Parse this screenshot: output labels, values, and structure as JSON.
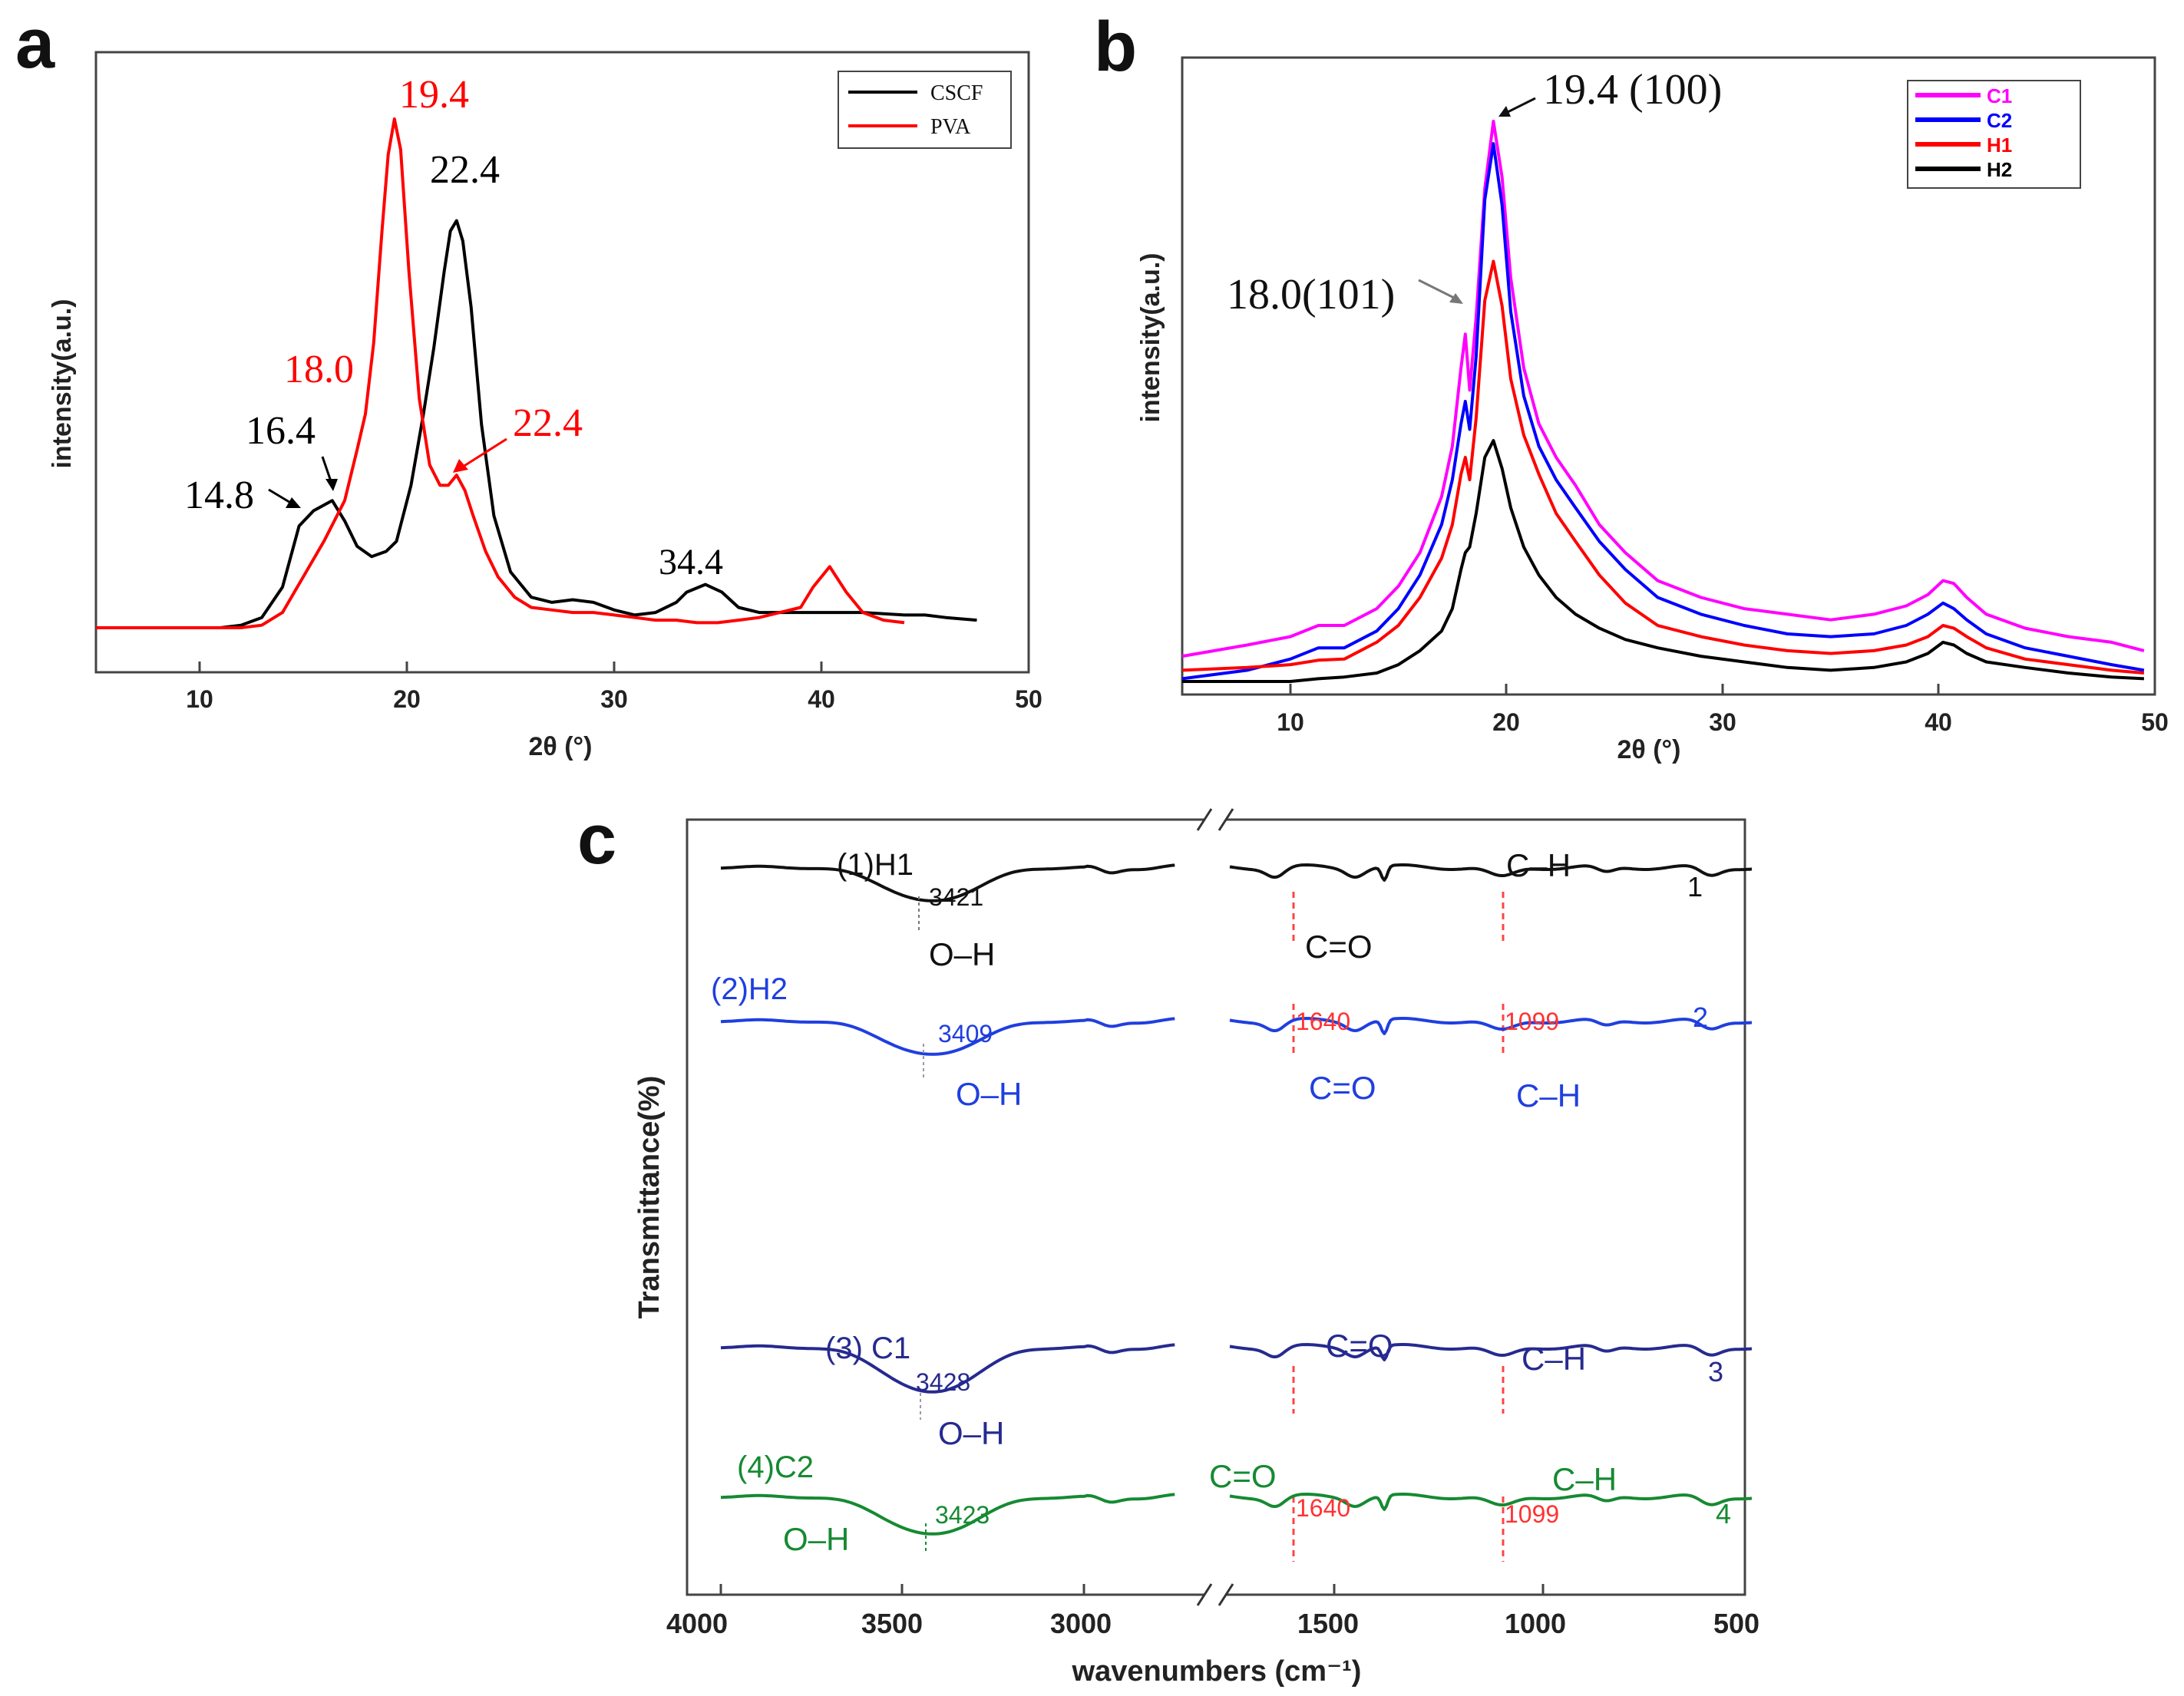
{
  "figure": {
    "panel_labels": [
      "a",
      "b",
      "c"
    ]
  },
  "chart_data": [
    {
      "id": "a",
      "type": "line",
      "xlabel": "2θ (°)",
      "ylabel": "intensity(a.u.)",
      "xlim": [
        5,
        50
      ],
      "ylim": [
        0,
        100
      ],
      "xticks": [
        "10",
        "20",
        "30",
        "40",
        "50"
      ],
      "legend": {
        "position": "top-right",
        "entries": [
          "CSCF",
          "PVA"
        ]
      },
      "series": [
        {
          "name": "CSCF",
          "color": "#000000",
          "x": [
            5,
            11,
            12,
            13,
            14,
            14.8,
            15.5,
            16.4,
            17,
            17.6,
            18.3,
            19,
            19.5,
            20.2,
            20.8,
            21.3,
            21.8,
            22.1,
            22.4,
            22.7,
            23.1,
            23.6,
            24.2,
            25,
            26,
            27,
            28,
            29,
            30,
            31,
            32,
            33,
            33.5,
            34.4,
            35.2,
            36,
            37,
            38,
            40,
            42,
            44,
            45,
            46,
            47.5
          ],
          "y": [
            0,
            0,
            0.5,
            2,
            8,
            20,
            23,
            25,
            21,
            16,
            14,
            15,
            17,
            28,
            42,
            55,
            70,
            78,
            80,
            76,
            63,
            40,
            22,
            11,
            6,
            5,
            5.5,
            5,
            3.5,
            2.5,
            3,
            5,
            7,
            8.5,
            7,
            4,
            3,
            3,
            3,
            3,
            2.5,
            2.5,
            2,
            1.5
          ]
        },
        {
          "name": "PVA",
          "color": "#ff0000",
          "x": [
            5,
            12,
            13,
            14,
            15,
            16,
            17,
            17.6,
            18,
            18.4,
            18.8,
            19.1,
            19.4,
            19.7,
            20.1,
            20.6,
            21.1,
            21.6,
            22.0,
            22.4,
            22.8,
            23.2,
            23.8,
            24.4,
            25.2,
            26,
            27,
            28,
            29,
            30,
            31,
            32,
            33,
            34,
            35,
            36,
            37,
            38,
            39,
            39.6,
            40.4,
            41.2,
            42,
            43,
            44
          ],
          "y": [
            0,
            0,
            0.5,
            3,
            10,
            17,
            25,
            35,
            42,
            56,
            78,
            93,
            100,
            94,
            70,
            45,
            32,
            28,
            28,
            30,
            27,
            22,
            15,
            10,
            6,
            4,
            3.5,
            3,
            3,
            2.5,
            2,
            1.5,
            1.5,
            1,
            1,
            1.5,
            2,
            3,
            4,
            8,
            12,
            7,
            3,
            1.5,
            1
          ]
        }
      ],
      "annotations": [
        {
          "text": "19.4",
          "color": "#ff0000"
        },
        {
          "text": "22.4",
          "color": "#000000"
        },
        {
          "text": "18.0",
          "color": "#ff0000"
        },
        {
          "text": "16.4",
          "color": "#000000"
        },
        {
          "text": "14.8",
          "color": "#000000"
        },
        {
          "text": "22.4",
          "color": "#ff0000"
        },
        {
          "text": "34.4",
          "color": "#000000"
        }
      ]
    },
    {
      "id": "b",
      "type": "line",
      "xlabel": "2θ (°)",
      "ylabel": "intensity(a.u.)",
      "xlim": [
        5,
        50
      ],
      "ylim": [
        0,
        100
      ],
      "xticks": [
        "10",
        "20",
        "30",
        "40",
        "50"
      ],
      "legend": {
        "position": "top-right",
        "entries": [
          "C1",
          "C2",
          "H1",
          "H2"
        ]
      },
      "profile_x": [
        5,
        8,
        10,
        11.3,
        12.5,
        14,
        15,
        16,
        17,
        17.5,
        17.9,
        18.1,
        18.3,
        18.6,
        19.0,
        19.4,
        19.8,
        20.2,
        20.8,
        21.5,
        22.3,
        23.2,
        24.3,
        25.5,
        27,
        29,
        31,
        33,
        35,
        37,
        38.5,
        39.5,
        40.2,
        40.7,
        41.3,
        42.2,
        44,
        46,
        48,
        49.5
      ],
      "series": [
        {
          "name": "C1",
          "color": "#ff00ff",
          "y": [
            4.5,
            6.5,
            8,
            10,
            10,
            13,
            17,
            23,
            33,
            42,
            56,
            62,
            52,
            65,
            88,
            100,
            90,
            72,
            56,
            46,
            40,
            35,
            28,
            23,
            18,
            15,
            13,
            12,
            11,
            12,
            13.5,
            15.5,
            18,
            17.5,
            15,
            12,
            9.5,
            8,
            7,
            5.5
          ]
        },
        {
          "name": "C2",
          "color": "#0000ff",
          "y": [
            0.5,
            2,
            4,
            6,
            6,
            9,
            13,
            19,
            28,
            36,
            46,
            50,
            45,
            58,
            86,
            96,
            85,
            66,
            51,
            42,
            36,
            31,
            25,
            20,
            15,
            12,
            10,
            8.5,
            8,
            8.5,
            10,
            12,
            14,
            13,
            11,
            8.5,
            6,
            4.5,
            3,
            2
          ]
        },
        {
          "name": "H1",
          "color": "#ff0000",
          "y": [
            2,
            2.5,
            3,
            3.8,
            4,
            7,
            10,
            15,
            22,
            28,
            37,
            40,
            36,
            47,
            68,
            75,
            67,
            54,
            44,
            37,
            30,
            25,
            19,
            14,
            10,
            8,
            6.5,
            5.5,
            5,
            5.5,
            6.5,
            8,
            10,
            9.5,
            8,
            6,
            4,
            3,
            2,
            1.5
          ]
        },
        {
          "name": "H2",
          "color": "#000000",
          "y": [
            0,
            0,
            0,
            0.5,
            0.8,
            1.5,
            3,
            5.5,
            9,
            13,
            20,
            23,
            24,
            30,
            40,
            43,
            38,
            31,
            24,
            19,
            15,
            12,
            9.5,
            7.5,
            6,
            4.5,
            3.5,
            2.5,
            2,
            2.5,
            3.5,
            5,
            7,
            6.5,
            5,
            3.5,
            2.5,
            1.5,
            0.8,
            0.5
          ]
        }
      ],
      "annotations": [
        {
          "text": "19.4 (100)"
        },
        {
          "text": "18.0(101)"
        }
      ]
    },
    {
      "id": "c",
      "type": "line",
      "xlabel": "wavenumbers (cm⁻¹)",
      "ylabel": "Transmittance(%)",
      "xticks": [
        "4000",
        "3500",
        "3000",
        "1500",
        "1000",
        "500"
      ],
      "x_break": [
        2750,
        1750
      ],
      "series": [
        {
          "name": "(1)H1",
          "color": "#111111",
          "index_label": "1",
          "oh_label": "3421",
          "oh_wavenumber": 3421
        },
        {
          "name": "(2)H2",
          "color": "#1f3fdf",
          "index_label": "2",
          "oh_label": "3409",
          "oh_wavenumber": 3409
        },
        {
          "name": "(3) C1",
          "color": "#262a8f",
          "index_label": "3",
          "oh_label": "3428",
          "oh_wavenumber": 3428
        },
        {
          "name": "(4)C2",
          "color": "#168a32",
          "index_label": "4",
          "oh_label": "3423",
          "oh_wavenumber": 3423
        }
      ],
      "reference_lines": [
        1640,
        1099
      ],
      "annotations": [
        {
          "text": "O–H"
        },
        {
          "text": "C=O"
        },
        {
          "text": "C–H"
        },
        {
          "text": "1640"
        },
        {
          "text": "1099"
        }
      ]
    }
  ]
}
